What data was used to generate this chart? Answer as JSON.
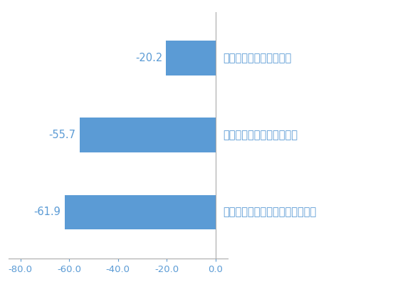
{
  "categories": [
    "交流が活発的な方である",
    "交流が活発的な方ではない",
    "どちらともいえない・分からない"
  ],
  "values": [
    -20.2,
    -55.7,
    -61.9
  ],
  "bar_color": "#5B9BD5",
  "xlim": [
    -85,
    5
  ],
  "xticks": [
    -80.0,
    -60.0,
    -40.0,
    -20.0,
    0.0
  ],
  "xtick_labels": [
    "-80.0",
    "-60.0",
    "-40.0",
    "-20.0",
    "0.0"
  ],
  "value_labels": [
    "-20.2",
    "-55.7",
    "-61.9"
  ],
  "background_color": "#FFFFFF",
  "bar_height": 0.45,
  "tick_fontsize": 9.5,
  "label_fontsize": 10.5,
  "value_fontsize": 10.5,
  "text_color": "#5B9BD5",
  "tick_color": "#5B9BD5",
  "spine_color": "#AAAAAA"
}
